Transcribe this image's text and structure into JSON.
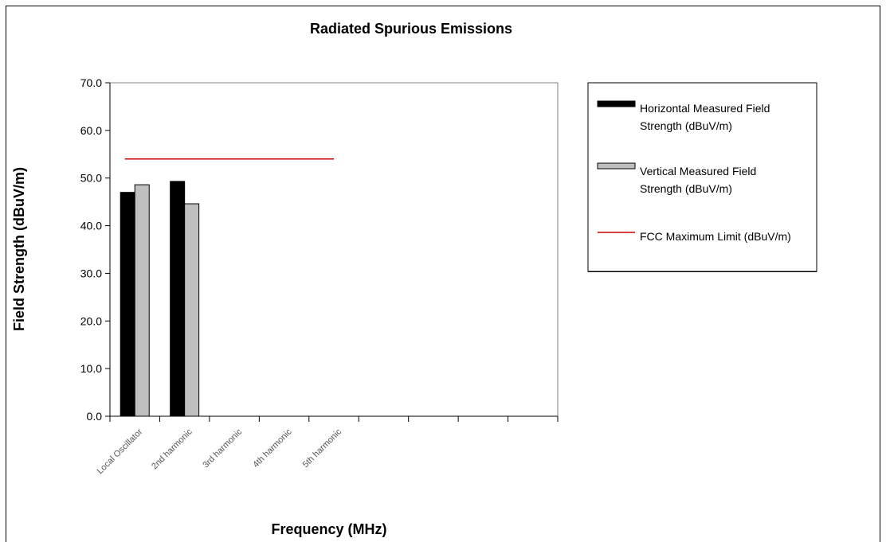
{
  "chart_data": {
    "type": "bar",
    "title": "Radiated Spurious Emissions",
    "xlabel": "Frequency (MHz)",
    "ylabel": "Field Strength (dBuV/m)",
    "ylim": [
      0,
      70
    ],
    "yticks": [
      "0.0",
      "10.0",
      "20.0",
      "30.0",
      "40.0",
      "50.0",
      "60.0",
      "70.0"
    ],
    "categories": [
      "Local Oscillator",
      "2nd harmonic",
      "3rd harmonic",
      "4th harmonic",
      "5th harmonic",
      "",
      "",
      "",
      ""
    ],
    "series": [
      {
        "name": "Horizontal Measured Field Strength (dBuV/m)",
        "values": [
          47.0,
          49.3,
          null,
          null,
          null,
          null,
          null,
          null,
          null
        ],
        "color": "#000000"
      },
      {
        "name": "Vertical Measured Field Strength (dBuV/m)",
        "values": [
          48.6,
          44.6,
          null,
          null,
          null,
          null,
          null,
          null,
          null
        ],
        "color": "#bfbfbf"
      }
    ],
    "limit_line": {
      "name": "FCC Maximum Limit (dBuV/m)",
      "value": 54.0,
      "from_category": 0,
      "to_category": 4,
      "color": "#cc0000"
    },
    "grid": false,
    "legend": "right"
  }
}
